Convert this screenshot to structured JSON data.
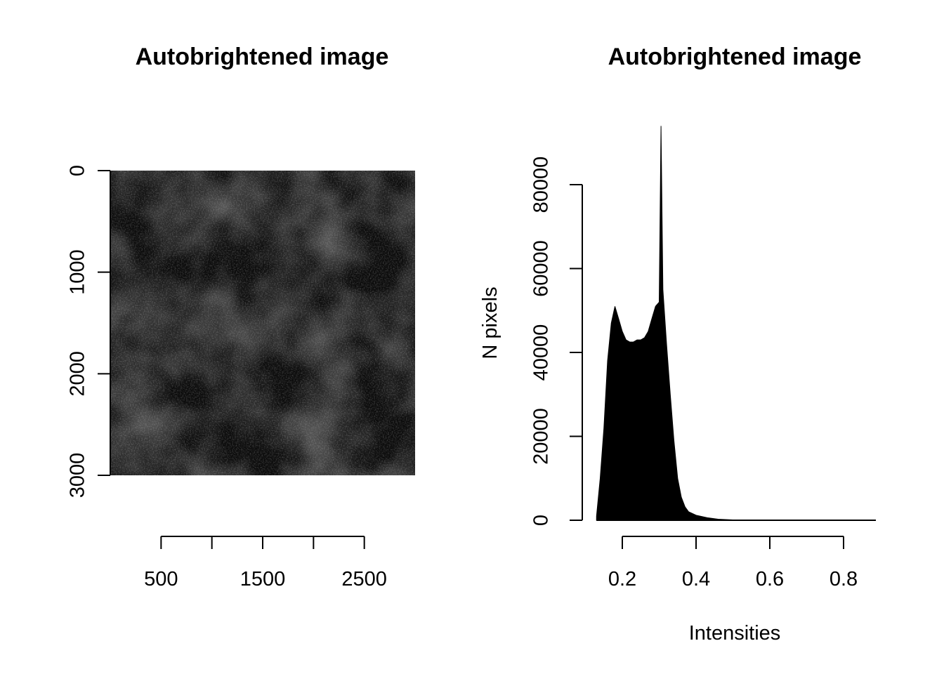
{
  "panels": [
    {
      "title": "Autobrightened image"
    },
    {
      "title": "Autobrightened image"
    }
  ],
  "chart_data": [
    {
      "type": "heatmap",
      "title": "Autobrightened image",
      "xlabel": "",
      "ylabel": "",
      "colormap": "grayscale",
      "x_ticks": [
        500,
        1000,
        1500,
        2000,
        2500
      ],
      "x_tick_labels": [
        "500",
        "1500",
        "2500"
      ],
      "xlim": [
        0,
        3000
      ],
      "y_ticks": [
        0,
        1000,
        2000,
        3000
      ],
      "y_tick_labels": [
        "0",
        "1000",
        "2000",
        "3000"
      ],
      "ylim": [
        3000,
        0
      ],
      "image_size": [
        3000,
        3000
      ],
      "mean_brightness": 0.22
    },
    {
      "type": "bar",
      "subtype": "histogram",
      "title": "Autobrightened image",
      "xlabel": "Intensities",
      "ylabel": "N pixels",
      "x_ticks": [
        0.2,
        0.4,
        0.6,
        0.8
      ],
      "x_tick_labels": [
        "0.2",
        "0.4",
        "0.6",
        "0.8"
      ],
      "y_ticks": [
        0,
        20000,
        40000,
        60000,
        80000
      ],
      "y_tick_labels": [
        "0",
        "20000",
        "40000",
        "60000",
        "80000"
      ],
      "xlim": [
        0.1,
        0.9
      ],
      "ylim": [
        0,
        96000
      ],
      "bar_color": "#000000",
      "x": [
        0.13,
        0.14,
        0.15,
        0.16,
        0.17,
        0.18,
        0.19,
        0.2,
        0.21,
        0.22,
        0.23,
        0.24,
        0.25,
        0.26,
        0.27,
        0.28,
        0.29,
        0.3,
        0.305,
        0.31,
        0.32,
        0.33,
        0.34,
        0.35,
        0.36,
        0.37,
        0.38,
        0.4,
        0.43,
        0.46,
        0.5,
        0.6,
        0.7,
        0.8,
        0.88
      ],
      "values": [
        1000,
        10000,
        22000,
        38000,
        47000,
        51000,
        48000,
        45000,
        43000,
        42500,
        42500,
        43000,
        43000,
        43500,
        45000,
        48000,
        51000,
        52000,
        94000,
        55000,
        42000,
        30000,
        19000,
        10000,
        5500,
        3200,
        2000,
        1200,
        600,
        250,
        80,
        40,
        20,
        10,
        5
      ]
    }
  ]
}
